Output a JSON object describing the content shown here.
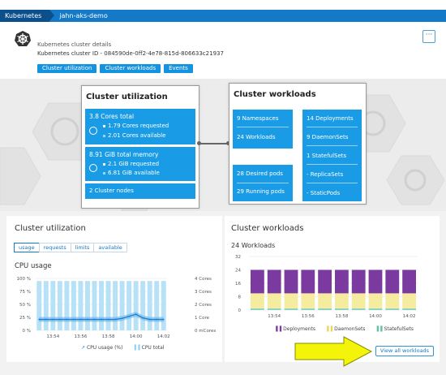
{
  "breadcrumb": {
    "items": [
      "Kubernetes",
      "jahn-aks-demo"
    ]
  },
  "header": {
    "subtitle": "Kubernetes cluster details",
    "cluster_id": "Kubernetes cluster ID - 084590de-0ff2-4e78-815d-806633c21937",
    "menu_label": "···",
    "tabs": [
      "Cluster utilization",
      "Cluster workloads",
      "Events"
    ]
  },
  "hero": {
    "utilization": {
      "title": "Cluster utilization",
      "cores_total": "3.8 Cores total",
      "cores_requested": "1.79 Cores requested",
      "cores_available": "2.01 Cores available",
      "memory_total": "8.91 GiB total memory",
      "memory_requested": "2.1 GiB requested",
      "memory_available": "6.81 GiB available",
      "nodes": "2 Cluster nodes"
    },
    "workloads": {
      "title": "Cluster workloads",
      "namespaces": "9 Namespaces",
      "workloads": "24 Workloads",
      "deployments": "14 Deployments",
      "daemonsets": "9 DaemonSets",
      "statefulsets": "1 StatefulSets",
      "replicasets": "- ReplicaSets",
      "staticpods": "- StaticPods",
      "desired_pods": "28 Desired pods",
      "running_pods": "29 Running pods"
    }
  },
  "utilization_card": {
    "title": "Cluster utilization",
    "tabs": [
      "usage",
      "requests",
      "limits",
      "available"
    ],
    "active_tab": "usage",
    "chart_title": "CPU usage",
    "legend": [
      "CPU usage (%)",
      "CPU total"
    ],
    "colors": {
      "bar": "#b6e1f7",
      "line": "#1a7ed3",
      "band": "#6db6ea"
    }
  },
  "workloads_card": {
    "title": "Cluster workloads",
    "count_label": "24 Workloads",
    "legend": [
      "Deployments",
      "DaemonSets",
      "StatefulSets"
    ],
    "colors": {
      "deployments": "#7b3aa0",
      "daemonsets": "#f5eca0",
      "statefulsets": "#8fd4c1"
    },
    "view_button": "View all workloads"
  },
  "chart_data": [
    {
      "type": "bar",
      "title": "CPU usage",
      "x": [
        "13:53",
        "13:53:30",
        "13:54",
        "13:54:30",
        "13:55",
        "13:55:30",
        "13:56",
        "13:56:30",
        "13:57",
        "13:57:30",
        "13:58",
        "13:58:30",
        "13:59",
        "13:59:30",
        "14:00",
        "14:00:30",
        "14:01",
        "14:01:30",
        "14:02"
      ],
      "xticks": [
        "13:54",
        "13:56",
        "13:58",
        "14:00",
        "14:02"
      ],
      "yticks_left": [
        "0 %",
        "25 %",
        "50 %",
        "75 %",
        "100 %"
      ],
      "yticks_right": [
        "0 mCores",
        "1 Core",
        "2 Cores",
        "3 Cores",
        "4 Cores"
      ],
      "ylim": [
        0,
        100
      ],
      "series": [
        {
          "name": "CPU total",
          "type": "bar",
          "values": [
            95,
            95,
            95,
            95,
            95,
            95,
            95,
            95,
            95,
            95,
            95,
            95,
            95,
            95,
            95,
            95,
            95,
            95,
            95
          ]
        },
        {
          "name": "CPU usage (%)",
          "type": "line",
          "values": [
            21,
            21,
            21,
            21,
            21,
            21,
            21,
            21,
            21,
            21,
            21,
            21,
            23,
            27,
            31,
            24,
            21,
            21,
            21
          ]
        }
      ]
    },
    {
      "type": "bar",
      "stacked": true,
      "title": "24 Workloads",
      "categories": [
        "13:53",
        "13:54",
        "13:55",
        "13:56",
        "13:57",
        "13:58",
        "13:59",
        "14:00",
        "14:01",
        "14:02"
      ],
      "xticks": [
        "13:54",
        "13:56",
        "13:58",
        "14:00",
        "14:02"
      ],
      "ylim": [
        0,
        32
      ],
      "yticks": [
        "0",
        "8",
        "16",
        "24",
        "32"
      ],
      "series": [
        {
          "name": "StatefulSets",
          "values": [
            1,
            1,
            1,
            1,
            1,
            1,
            1,
            1,
            1,
            1
          ]
        },
        {
          "name": "DaemonSets",
          "values": [
            9,
            9,
            9,
            9,
            9,
            9,
            9,
            9,
            9,
            9
          ]
        },
        {
          "name": "Deployments",
          "values": [
            14,
            14,
            14,
            14,
            14,
            14,
            14,
            14,
            14,
            14
          ]
        }
      ]
    }
  ]
}
